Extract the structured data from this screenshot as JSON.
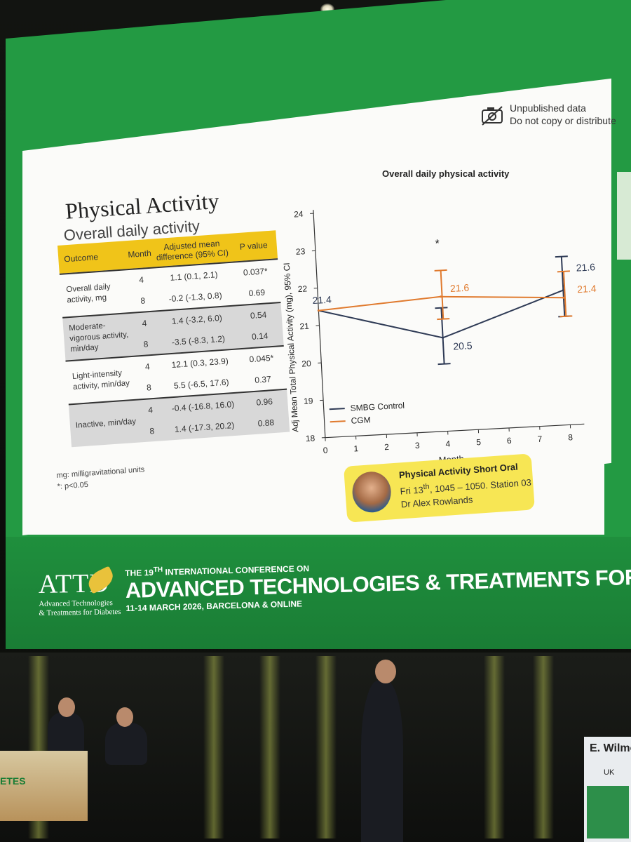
{
  "watermark": {
    "line1": "Unpublished data",
    "line2": "Do not copy or distribute",
    "icon": "no-camera-icon"
  },
  "slide": {
    "title": "Physical Activity",
    "subtitle": "Overall daily activity"
  },
  "table": {
    "headers": [
      "Outcome",
      "Month",
      "Adjusted mean difference (95% CI)",
      "P value"
    ],
    "groups": [
      {
        "outcome": "Overall daily activity, mg",
        "rows": [
          {
            "month": "4",
            "diff": "1.1 (0.1, 2.1)",
            "p": "0.037*"
          },
          {
            "month": "8",
            "diff": "-0.2 (-1.3, 0.8)",
            "p": "0.69"
          }
        ]
      },
      {
        "outcome": "Moderate-vigorous activity, min/day",
        "rows": [
          {
            "month": "4",
            "diff": "1.4 (-3.2, 6.0)",
            "p": "0.54"
          },
          {
            "month": "8",
            "diff": "-3.5 (-8.3, 1.2)",
            "p": "0.14"
          }
        ]
      },
      {
        "outcome": "Light-intensity activity, min/day",
        "rows": [
          {
            "month": "4",
            "diff": "12.1 (0.3, 23.9)",
            "p": "0.045*"
          },
          {
            "month": "8",
            "diff": "5.5 (-6.5, 17.6)",
            "p": "0.37"
          }
        ]
      },
      {
        "outcome": "Inactive, min/day",
        "rows": [
          {
            "month": "4",
            "diff": "-0.4 (-16.8, 16.0)",
            "p": "0.96"
          },
          {
            "month": "8",
            "diff": "1.4 (-17.3, 20.2)",
            "p": "0.88"
          }
        ]
      }
    ],
    "note1": "mg: milligravitational units",
    "note2": "*: p<0.05"
  },
  "chart_data": {
    "type": "line",
    "title": "Overall daily physical activity",
    "xlabel": "Month",
    "ylabel": "Adj Mean Total Physical Activity (mg), 95% CI",
    "x_ticks": [
      0,
      1,
      2,
      3,
      4,
      5,
      6,
      7,
      8
    ],
    "y_ticks": [
      18,
      19,
      20,
      21,
      22,
      23,
      24
    ],
    "xlim": [
      0,
      8
    ],
    "ylim": [
      18,
      24
    ],
    "significance_marker": "*",
    "series": [
      {
        "name": "SMBG Control",
        "color": "#2e3a55",
        "x": [
          0,
          4,
          8
        ],
        "y": [
          21.4,
          20.5,
          21.6
        ],
        "ci_low": [
          null,
          19.8,
          20.9
        ],
        "ci_high": [
          null,
          21.3,
          22.5
        ],
        "labels": [
          "21.4",
          "20.5",
          "21.6"
        ]
      },
      {
        "name": "CGM",
        "color": "#e07a2e",
        "x": [
          0,
          4,
          8
        ],
        "y": [
          21.4,
          21.6,
          21.4
        ],
        "ci_low": [
          null,
          21.0,
          20.9
        ],
        "ci_high": [
          null,
          22.3,
          22.1
        ],
        "labels": [
          "",
          "21.6",
          "21.4"
        ]
      }
    ]
  },
  "promo": {
    "title": "Physical Activity Short Oral",
    "line1_pre": "Fri 13",
    "line1_sup": "th",
    "line1_post": ", 1045 – 1050. Station 03",
    "line2": "Dr Alex Rowlands"
  },
  "conference": {
    "logo": "ATTD",
    "logo_sub1": "Advanced Technologies",
    "logo_sub2": "& Treatments for Diabetes",
    "line1_pre": "THE 19",
    "line1_sup": "TH",
    "line1_post": " INTERNATIONAL CONFERENCE ON",
    "line2": "ADVANCED TECHNOLOGIES & TREATMENTS FOR DIABET",
    "line3": "11-14 MARCH 2026, BARCELONA & ONLINE"
  },
  "stage": {
    "desk_text": "ETES",
    "podium_name": "E. Wilmot",
    "podium_country": "UK"
  }
}
